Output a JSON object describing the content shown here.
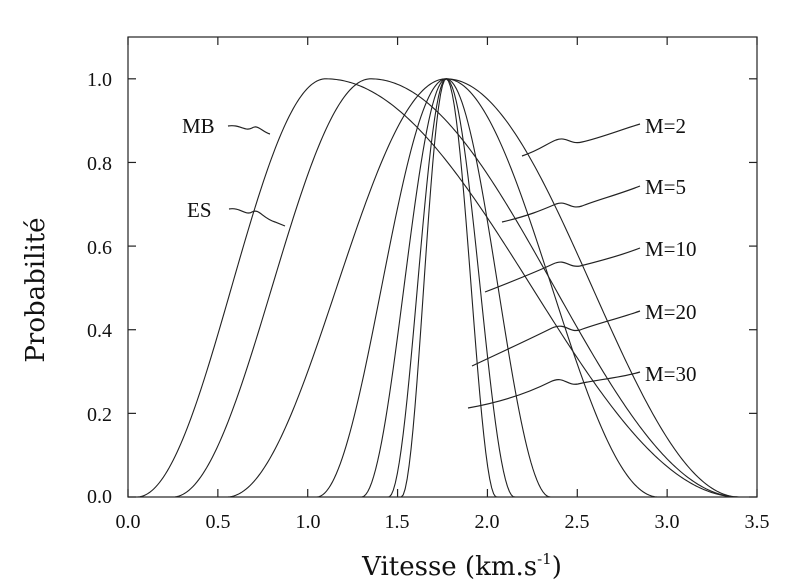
{
  "chart_data": {
    "type": "line",
    "title": "",
    "xlabel": "Vitesse (km.s",
    "xlabel_sup": "-1",
    "xlabel_close": ")",
    "ylabel": "Probabilité",
    "xlim": [
      0.0,
      3.5
    ],
    "ylim": [
      0.0,
      1.1
    ],
    "grid": false,
    "legend": "none",
    "x_ticks": [
      "0.0",
      "0.5",
      "1.0",
      "1.5",
      "2.0",
      "2.5",
      "3.0",
      "3.5"
    ],
    "y_ticks": [
      "0.0",
      "0.2",
      "0.4",
      "0.6",
      "0.8",
      "1.0"
    ],
    "series": [
      {
        "name": "MB",
        "peak": 1.1,
        "left_zero": 0.05,
        "right_zero": 3.4
      },
      {
        "name": "ES",
        "peak": 1.35,
        "left_zero": 0.25,
        "right_zero": 3.4
      },
      {
        "name": "M=2",
        "peak": 1.77,
        "left_zero": 0.55,
        "right_zero": 3.4
      },
      {
        "name": "M=5",
        "peak": 1.77,
        "left_zero": 1.05,
        "right_zero": 2.95
      },
      {
        "name": "M=10",
        "peak": 1.77,
        "left_zero": 1.3,
        "right_zero": 2.35
      },
      {
        "name": "M=20",
        "peak": 1.77,
        "left_zero": 1.45,
        "right_zero": 2.15
      },
      {
        "name": "M=30",
        "peak": 1.77,
        "left_zero": 1.52,
        "right_zero": 2.05
      }
    ]
  },
  "annotations": {
    "mb": "MB",
    "es": "ES",
    "m2": "M=2",
    "m5": "M=5",
    "m10": "M=10",
    "m20": "M=20",
    "m30": "M=30"
  }
}
